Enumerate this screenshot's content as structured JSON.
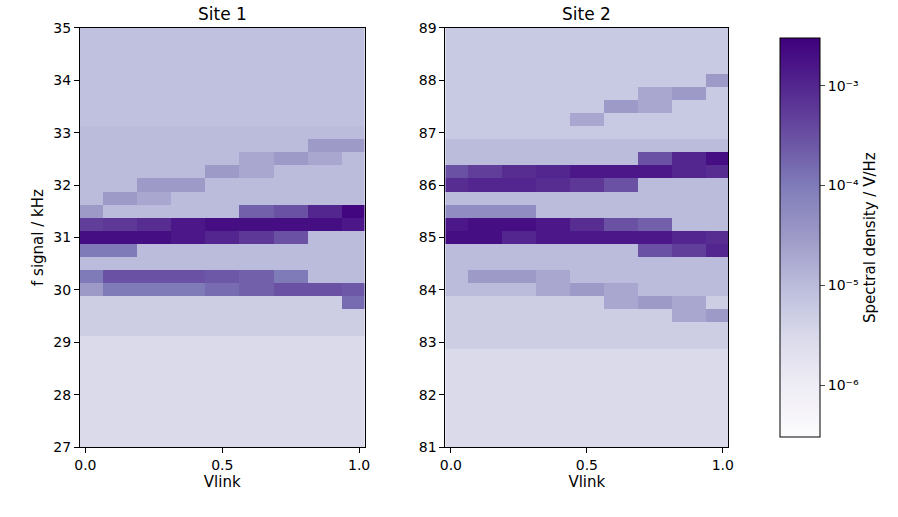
{
  "chart_data": [
    {
      "type": "heatmap",
      "title": "Site 1",
      "x_label": "Vlink",
      "y_label": "f signal / kHz",
      "xlim": [
        -0.02,
        1.02
      ],
      "xticks": [
        {
          "value": 0,
          "label": "0.0"
        },
        {
          "value": 0.5,
          "label": "0.5"
        },
        {
          "value": 1,
          "label": "1.0"
        }
      ],
      "ylim": [
        27,
        35
      ],
      "yticks": [
        27,
        28,
        29,
        30,
        31,
        32,
        33,
        34,
        35
      ],
      "x": [
        0,
        0.125,
        0.25,
        0.375,
        0.5,
        0.625,
        0.75,
        0.875,
        1
      ],
      "y": [
        27,
        27.25,
        27.5,
        27.75,
        28,
        28.25,
        28.5,
        28.75,
        29,
        29.25,
        29.5,
        29.75,
        30,
        30.25,
        30.5,
        30.75,
        31,
        31.25,
        31.5,
        31.75,
        32,
        32.25,
        32.5,
        32.75,
        33,
        33.25,
        33.5,
        33.75,
        34,
        34.25,
        34.5,
        34.75,
        35
      ],
      "z": [
        [
          3e-06,
          3e-06,
          3e-06,
          3e-06,
          3e-06,
          3e-06,
          3e-06,
          3e-06,
          3e-06
        ],
        [
          3e-06,
          3e-06,
          3e-06,
          3e-06,
          3e-06,
          3e-06,
          3e-06,
          3e-06,
          3e-06
        ],
        [
          3e-06,
          3e-06,
          3e-06,
          3e-06,
          3e-06,
          3e-06,
          3e-06,
          3e-06,
          3e-06
        ],
        [
          3e-06,
          3e-06,
          3e-06,
          3e-06,
          3e-06,
          3e-06,
          3e-06,
          3e-06,
          3e-06
        ],
        [
          3e-06,
          3e-06,
          3e-06,
          3e-06,
          3e-06,
          3e-06,
          3e-06,
          3e-06,
          3e-06
        ],
        [
          3e-06,
          3e-06,
          3e-06,
          3e-06,
          3e-06,
          3e-06,
          3e-06,
          3e-06,
          3e-06
        ],
        [
          3e-06,
          3e-06,
          3e-06,
          3e-06,
          3e-06,
          3e-06,
          3e-06,
          3e-06,
          3e-06
        ],
        [
          3e-06,
          3e-06,
          3e-06,
          3e-06,
          3e-06,
          3e-06,
          3e-06,
          3e-06,
          3e-06
        ],
        [
          3e-06,
          3e-06,
          3e-06,
          3e-06,
          3e-06,
          3e-06,
          3e-06,
          3e-06,
          3e-06
        ],
        [
          5e-06,
          5e-06,
          5e-06,
          5e-06,
          5e-06,
          5e-06,
          5e-06,
          5e-06,
          5e-06
        ],
        [
          5e-06,
          5e-06,
          5e-06,
          5e-06,
          5e-06,
          5e-06,
          5e-06,
          5e-06,
          5e-06
        ],
        [
          5e-06,
          5e-06,
          5e-06,
          5e-06,
          5e-06,
          5e-06,
          5e-06,
          5e-06,
          0.00015
        ],
        [
          3e-05,
          0.0001,
          0.0001,
          0.0001,
          0.00015,
          0.0002,
          0.0003,
          0.0003,
          0.00025
        ],
        [
          0.0001,
          0.0003,
          0.0003,
          0.0003,
          0.00025,
          0.0002,
          0.0001,
          1e-05,
          1e-05
        ],
        [
          1e-05,
          1e-05,
          1e-05,
          1e-05,
          1e-05,
          1e-05,
          1e-05,
          1e-05,
          1e-05
        ],
        [
          0.0001,
          0.0001,
          1e-05,
          1e-05,
          1e-05,
          1e-05,
          1e-05,
          1e-05,
          1e-05
        ],
        [
          0.002,
          0.002,
          0.002,
          0.0015,
          0.001,
          0.0006,
          0.0003,
          1e-05,
          1e-05
        ],
        [
          0.0005,
          0.0006,
          0.0008,
          0.0015,
          0.002,
          0.002,
          0.002,
          0.002,
          0.0015
        ],
        [
          3e-05,
          1e-05,
          1e-05,
          1e-05,
          1e-05,
          0.0002,
          0.0003,
          0.001,
          0.0025
        ],
        [
          1e-05,
          3e-05,
          2e-05,
          1e-05,
          1e-05,
          1e-05,
          1e-05,
          1e-05,
          1e-05
        ],
        [
          1e-05,
          1e-05,
          3e-05,
          3e-05,
          1e-05,
          1e-05,
          1e-05,
          1e-05,
          1e-05
        ],
        [
          1e-05,
          1e-05,
          1e-05,
          1e-05,
          3e-05,
          2e-05,
          1e-05,
          1e-05,
          1e-05
        ],
        [
          1e-05,
          1e-05,
          1e-05,
          1e-05,
          1e-05,
          2e-05,
          3e-05,
          2e-05,
          1e-05
        ],
        [
          1e-05,
          1e-05,
          1e-05,
          1e-05,
          1e-05,
          1e-05,
          1e-05,
          3e-05,
          3e-05
        ],
        [
          1e-05,
          1e-05,
          1e-05,
          1e-05,
          1e-05,
          1e-05,
          1e-05,
          1e-05,
          1e-05
        ],
        [
          8e-06,
          8e-06,
          8e-06,
          8e-06,
          8e-06,
          8e-06,
          8e-06,
          8e-06,
          8e-06
        ],
        [
          8e-06,
          8e-06,
          8e-06,
          8e-06,
          8e-06,
          8e-06,
          8e-06,
          8e-06,
          8e-06
        ],
        [
          8e-06,
          8e-06,
          8e-06,
          8e-06,
          8e-06,
          8e-06,
          8e-06,
          8e-06,
          8e-06
        ],
        [
          8e-06,
          8e-06,
          8e-06,
          8e-06,
          8e-06,
          8e-06,
          8e-06,
          8e-06,
          8e-06
        ],
        [
          8e-06,
          8e-06,
          8e-06,
          8e-06,
          8e-06,
          8e-06,
          8e-06,
          8e-06,
          8e-06
        ],
        [
          8e-06,
          8e-06,
          8e-06,
          8e-06,
          8e-06,
          8e-06,
          8e-06,
          8e-06,
          8e-06
        ],
        [
          8e-06,
          8e-06,
          8e-06,
          8e-06,
          8e-06,
          8e-06,
          8e-06,
          8e-06,
          8e-06
        ],
        [
          8e-06,
          8e-06,
          8e-06,
          8e-06,
          8e-06,
          8e-06,
          8e-06,
          8e-06,
          8e-06
        ]
      ]
    },
    {
      "type": "heatmap",
      "title": "Site 2",
      "x_label": "Vlink",
      "xlim": [
        -0.02,
        1.02
      ],
      "xticks": [
        {
          "value": 0,
          "label": "0.0"
        },
        {
          "value": 0.5,
          "label": "0.5"
        },
        {
          "value": 1,
          "label": "1.0"
        }
      ],
      "ylim": [
        81,
        89
      ],
      "yticks": [
        81,
        82,
        83,
        84,
        85,
        86,
        87,
        88,
        89
      ],
      "x": [
        0,
        0.125,
        0.25,
        0.375,
        0.5,
        0.625,
        0.75,
        0.875,
        1
      ],
      "y": [
        81,
        81.25,
        81.5,
        81.75,
        82,
        82.25,
        82.5,
        82.75,
        83,
        83.25,
        83.5,
        83.75,
        84,
        84.25,
        84.5,
        84.75,
        85,
        85.25,
        85.5,
        85.75,
        86,
        86.25,
        86.5,
        86.75,
        87,
        87.25,
        87.5,
        87.75,
        88,
        88.25,
        88.5,
        88.75,
        89
      ],
      "z": [
        [
          3e-06,
          3e-06,
          3e-06,
          3e-06,
          3e-06,
          3e-06,
          3e-06,
          3e-06,
          3e-06
        ],
        [
          3e-06,
          3e-06,
          3e-06,
          3e-06,
          3e-06,
          3e-06,
          3e-06,
          3e-06,
          3e-06
        ],
        [
          3e-06,
          3e-06,
          3e-06,
          3e-06,
          3e-06,
          3e-06,
          3e-06,
          3e-06,
          3e-06
        ],
        [
          3e-06,
          3e-06,
          3e-06,
          3e-06,
          3e-06,
          3e-06,
          3e-06,
          3e-06,
          3e-06
        ],
        [
          3e-06,
          3e-06,
          3e-06,
          3e-06,
          3e-06,
          3e-06,
          3e-06,
          3e-06,
          3e-06
        ],
        [
          3e-06,
          3e-06,
          3e-06,
          3e-06,
          3e-06,
          3e-06,
          3e-06,
          3e-06,
          3e-06
        ],
        [
          3e-06,
          3e-06,
          3e-06,
          3e-06,
          3e-06,
          3e-06,
          3e-06,
          3e-06,
          3e-06
        ],
        [
          3e-06,
          3e-06,
          3e-06,
          3e-06,
          3e-06,
          3e-06,
          3e-06,
          3e-06,
          3e-06
        ],
        [
          5e-06,
          5e-06,
          5e-06,
          5e-06,
          5e-06,
          5e-06,
          5e-06,
          5e-06,
          5e-06
        ],
        [
          5e-06,
          5e-06,
          5e-06,
          5e-06,
          5e-06,
          5e-06,
          5e-06,
          5e-06,
          5e-06
        ],
        [
          5e-06,
          5e-06,
          5e-06,
          5e-06,
          5e-06,
          5e-06,
          5e-06,
          2e-05,
          3e-05
        ],
        [
          5e-06,
          5e-06,
          5e-06,
          5e-06,
          5e-06,
          2e-05,
          3e-05,
          2e-05,
          5e-06
        ],
        [
          1e-05,
          1e-05,
          1e-05,
          2e-05,
          3e-05,
          2e-05,
          1e-05,
          1e-05,
          1e-05
        ],
        [
          1e-05,
          3e-05,
          3e-05,
          2e-05,
          1e-05,
          1e-05,
          1e-05,
          1e-05,
          1e-05
        ],
        [
          1e-05,
          1e-05,
          1e-05,
          1e-05,
          1e-05,
          1e-05,
          1e-05,
          1e-05,
          1e-05
        ],
        [
          1e-05,
          1e-05,
          1e-05,
          1e-05,
          1e-05,
          1e-05,
          0.0003,
          0.0005,
          0.001
        ],
        [
          0.002,
          0.002,
          0.001,
          0.0015,
          0.0015,
          0.0015,
          0.0015,
          0.001,
          0.0008
        ],
        [
          0.0015,
          0.002,
          0.002,
          0.0015,
          0.0008,
          0.0003,
          0.0002,
          1e-05,
          1e-05
        ],
        [
          5e-05,
          5e-05,
          5e-05,
          1e-05,
          1e-05,
          1e-05,
          1e-05,
          1e-05,
          1e-05
        ],
        [
          1e-05,
          1e-05,
          1e-05,
          1e-05,
          1e-05,
          1e-05,
          1e-05,
          1e-05,
          1e-05
        ],
        [
          0.0008,
          0.001,
          0.001,
          0.0008,
          0.0006,
          0.0003,
          1e-05,
          1e-05,
          1e-05
        ],
        [
          0.0003,
          0.0005,
          0.0008,
          0.001,
          0.0015,
          0.0015,
          0.0015,
          0.001,
          0.0008
        ],
        [
          1e-05,
          1e-05,
          1e-05,
          1e-05,
          1e-05,
          1e-05,
          0.0003,
          0.001,
          0.002
        ],
        [
          1e-05,
          1e-05,
          1e-05,
          1e-05,
          1e-05,
          1e-05,
          1e-05,
          1e-05,
          1e-05
        ],
        [
          6e-06,
          6e-06,
          6e-06,
          6e-06,
          6e-06,
          6e-06,
          6e-06,
          6e-06,
          6e-06
        ],
        [
          6e-06,
          6e-06,
          6e-06,
          6e-06,
          2e-05,
          6e-06,
          6e-06,
          6e-06,
          6e-06
        ],
        [
          6e-06,
          6e-06,
          6e-06,
          6e-06,
          6e-06,
          3e-05,
          2e-05,
          6e-06,
          6e-06
        ],
        [
          6e-06,
          6e-06,
          6e-06,
          6e-06,
          6e-06,
          6e-06,
          2e-05,
          3e-05,
          6e-06
        ],
        [
          6e-06,
          6e-06,
          6e-06,
          6e-06,
          6e-06,
          6e-06,
          6e-06,
          6e-06,
          3e-05
        ],
        [
          6e-06,
          6e-06,
          6e-06,
          6e-06,
          6e-06,
          6e-06,
          6e-06,
          6e-06,
          6e-06
        ],
        [
          6e-06,
          6e-06,
          6e-06,
          6e-06,
          6e-06,
          6e-06,
          6e-06,
          6e-06,
          6e-06
        ],
        [
          6e-06,
          6e-06,
          6e-06,
          6e-06,
          6e-06,
          6e-06,
          6e-06,
          6e-06,
          6e-06
        ],
        [
          6e-06,
          6e-06,
          6e-06,
          6e-06,
          6e-06,
          6e-06,
          6e-06,
          6e-06,
          6e-06
        ]
      ],
      "colorbar": {
        "title": "Spectral density / V/Hz",
        "log": true,
        "range": [
          3e-07,
          0.003
        ],
        "ticks": [
          {
            "value": 1e-06,
            "label": "10⁻⁶"
          },
          {
            "value": 1e-05,
            "label": "10⁻⁵"
          },
          {
            "value": 0.0001,
            "label": "10⁻⁴"
          },
          {
            "value": 0.001,
            "label": "10⁻³"
          }
        ],
        "colors": [
          "#fcfbfd",
          "#efedf5",
          "#dadaeb",
          "#bcbddc",
          "#9e9ac8",
          "#807dba",
          "#6a51a3",
          "#54278f",
          "#3f007d"
        ]
      }
    }
  ]
}
